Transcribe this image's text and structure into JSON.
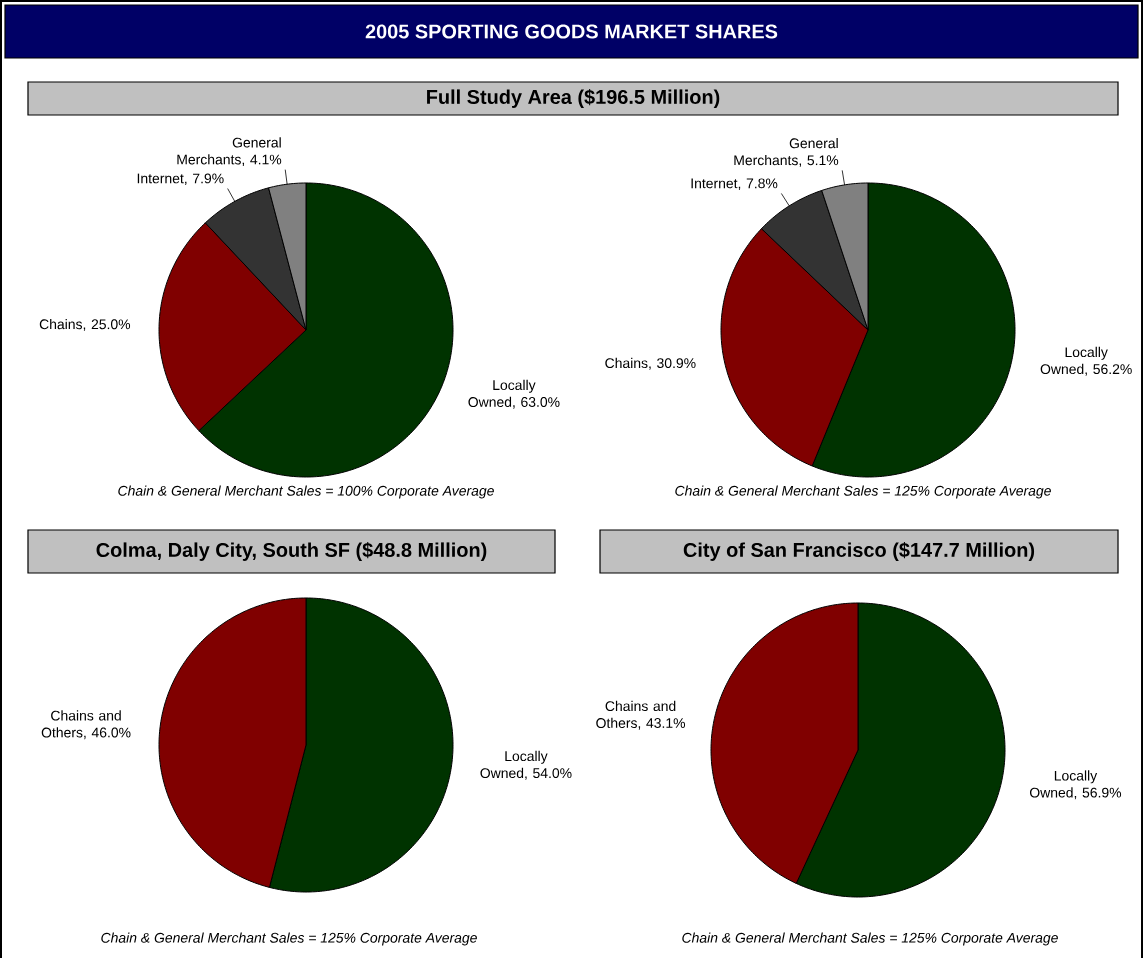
{
  "chart_data": [
    {
      "type": "pie",
      "title": "2005 SPORTING GOODS MARKET SHARES",
      "subtitle": "Full Study Area ($196.5 Million)",
      "categories": [
        "Locally Owned, 63.0%",
        "Chains, 25.0%",
        "Internet, 7.9%",
        "General Merchants, 4.1%"
      ],
      "values": [
        63.0,
        25.0,
        7.9,
        4.1
      ],
      "colors": [
        "#003300",
        "#800000",
        "#333333",
        "#808080"
      ],
      "annotations": [
        "Chain & General Merchant Sales = 100% Corporate Average"
      ]
    },
    {
      "type": "pie",
      "categories": [
        "Locally Owned, 56.2%",
        "Chains, 30.9%",
        "Internet, 7.8%",
        "General Merchants, 5.1%"
      ],
      "values": [
        56.2,
        30.9,
        7.8,
        5.1
      ],
      "colors": [
        "#003300",
        "#800000",
        "#333333",
        "#808080"
      ],
      "annotations": [
        "Chain & General Merchant Sales = 125% Corporate Average"
      ]
    },
    {
      "type": "pie",
      "title": "Colma, Daly City, South SF ($48.8 Million)",
      "categories": [
        "Locally Owned, 54.0%",
        "Chains and Others, 46.0%"
      ],
      "values": [
        54.0,
        46.0
      ],
      "colors": [
        "#003300",
        "#800000"
      ],
      "annotations": [
        "Chain & General Merchant Sales = 125% Corporate Average"
      ]
    },
    {
      "type": "pie",
      "title": "City of San Francisco ($147.7 Million)",
      "categories": [
        "Locally Owned, 56.9%",
        "Chains and Others, 43.1%"
      ],
      "values": [
        56.9,
        43.1
      ],
      "colors": [
        "#003300",
        "#800000"
      ],
      "annotations": [
        "Chain & General Merchant Sales = 125% Corporate Average"
      ]
    }
  ]
}
